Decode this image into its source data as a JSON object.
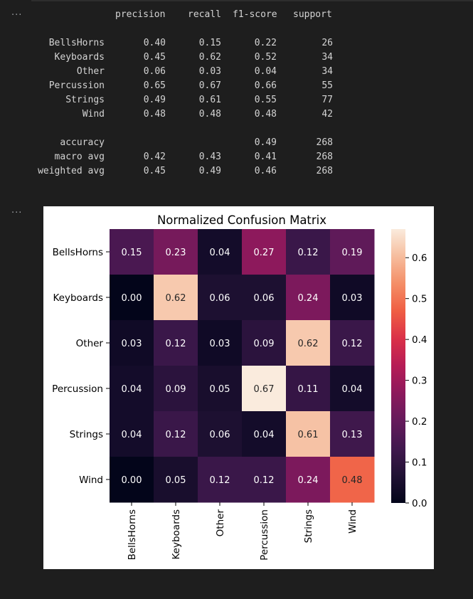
{
  "cells": [
    {
      "more_label": "..."
    },
    {
      "more_label": "..."
    }
  ],
  "report": {
    "headers": [
      "precision",
      "recall",
      "f1-score",
      "support"
    ],
    "rows": [
      {
        "label": "BellsHorns",
        "precision": "0.40",
        "recall": "0.15",
        "f1": "0.22",
        "support": "26"
      },
      {
        "label": "Keyboards",
        "precision": "0.45",
        "recall": "0.62",
        "f1": "0.52",
        "support": "34"
      },
      {
        "label": "Other",
        "precision": "0.06",
        "recall": "0.03",
        "f1": "0.04",
        "support": "34"
      },
      {
        "label": "Percussion",
        "precision": "0.65",
        "recall": "0.67",
        "f1": "0.66",
        "support": "55"
      },
      {
        "label": "Strings",
        "precision": "0.49",
        "recall": "0.61",
        "f1": "0.55",
        "support": "77"
      },
      {
        "label": "Wind",
        "precision": "0.48",
        "recall": "0.48",
        "f1": "0.48",
        "support": "42"
      }
    ],
    "summary": [
      {
        "label": "accuracy",
        "precision": "",
        "recall": "",
        "f1": "0.49",
        "support": "268"
      },
      {
        "label": "macro avg",
        "precision": "0.42",
        "recall": "0.43",
        "f1": "0.41",
        "support": "268"
      },
      {
        "label": "weighted avg",
        "precision": "0.45",
        "recall": "0.49",
        "f1": "0.46",
        "support": "268"
      }
    ]
  },
  "chart_data": {
    "type": "heatmap",
    "title": "Normalized Confusion Matrix",
    "rows": [
      "BellsHorns",
      "Keyboards",
      "Other",
      "Percussion",
      "Strings",
      "Wind"
    ],
    "cols": [
      "BellsHorns",
      "Keyboards",
      "Other",
      "Percussion",
      "Strings",
      "Wind"
    ],
    "values": [
      [
        0.15,
        0.23,
        0.04,
        0.27,
        0.12,
        0.19
      ],
      [
        0.0,
        0.62,
        0.06,
        0.06,
        0.24,
        0.03
      ],
      [
        0.03,
        0.12,
        0.03,
        0.09,
        0.62,
        0.12
      ],
      [
        0.04,
        0.09,
        0.05,
        0.67,
        0.11,
        0.04
      ],
      [
        0.04,
        0.12,
        0.06,
        0.04,
        0.61,
        0.13
      ],
      [
        0.0,
        0.05,
        0.12,
        0.12,
        0.24,
        0.48
      ]
    ],
    "colorbar": {
      "min": 0.0,
      "max": 0.67,
      "ticks": [
        0.0,
        0.1,
        0.2,
        0.3,
        0.4,
        0.5,
        0.6
      ],
      "tick_labels": [
        "0.0",
        "0.1",
        "0.2",
        "0.3",
        "0.4",
        "0.5",
        "0.6"
      ],
      "colormap": "rocket"
    }
  }
}
